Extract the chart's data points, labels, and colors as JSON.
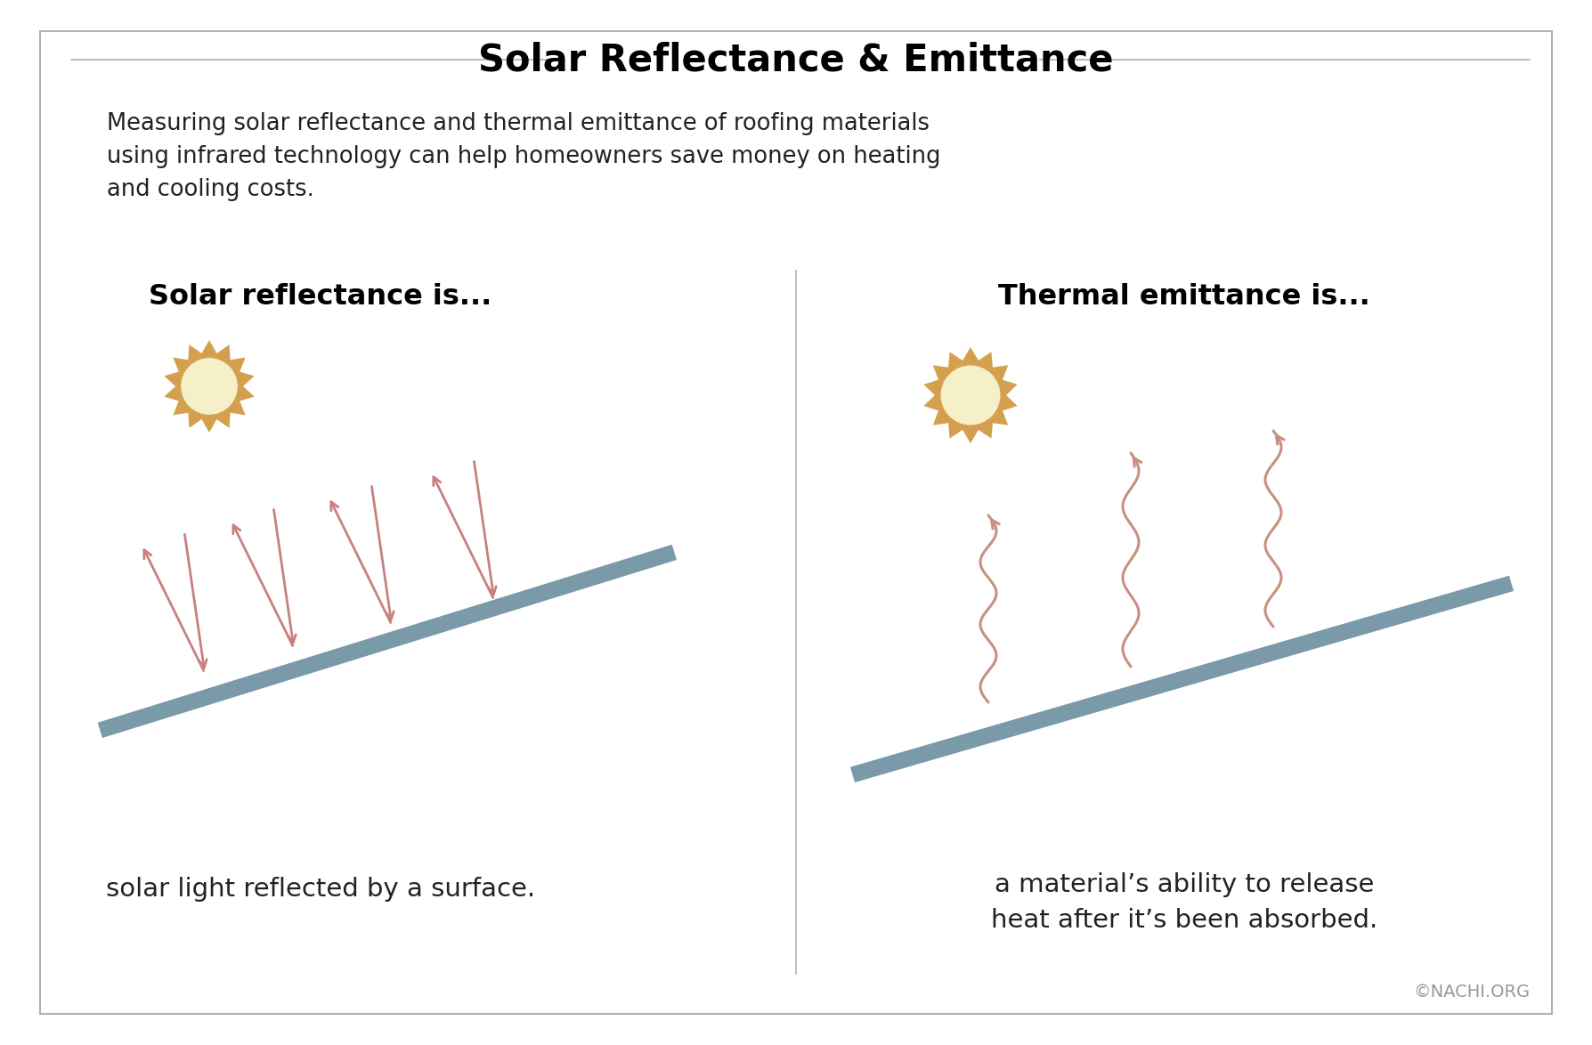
{
  "title": "Solar Reflectance & Emittance",
  "subtitle": "Measuring solar reflectance and thermal emittance of roofing materials\nusing infrared technology can help homeowners save money on heating\nand cooling costs.",
  "left_heading": "Solar reflectance is...",
  "left_caption": "solar light reflected by a surface.",
  "right_heading": "Thermal emittance is...",
  "right_caption": "a material’s ability to release\nheat after it’s been absorbed.",
  "background_color": "#ffffff",
  "border_color": "#b0b0b0",
  "title_color": "#000000",
  "text_color": "#222222",
  "arrow_color": "#c88080",
  "roof_color": "#7a9aaa",
  "sun_outer_color": "#d4a050",
  "sun_inner_color": "#f5f0c8",
  "wavy_color": "#c89080",
  "copyright_text": "©NACHI.ORG",
  "fig_width": 17.88,
  "fig_height": 11.74
}
